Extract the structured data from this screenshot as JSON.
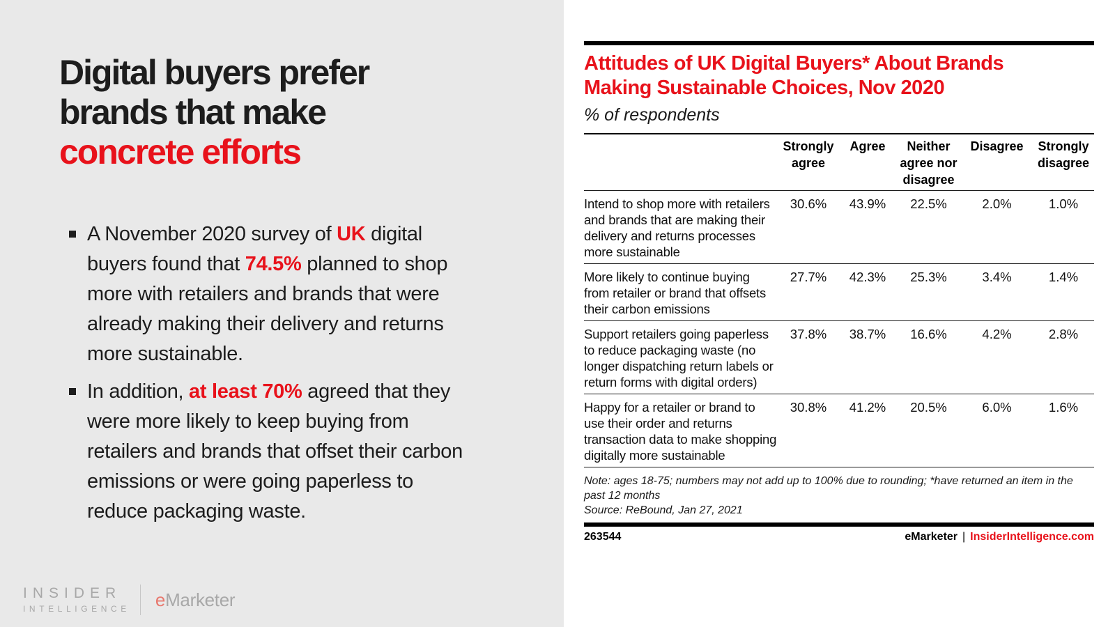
{
  "left_panel": {
    "title": {
      "line1": "Digital buyers prefer",
      "line2": "brands that make",
      "line3": "concrete efforts"
    },
    "bullets": [
      {
        "segments": [
          {
            "text": "A November 2020 survey of "
          },
          {
            "text": "UK",
            "style": "em"
          },
          {
            "text": " digital\nbuyers found that "
          },
          {
            "text": "74.5%",
            "style": "em"
          },
          {
            "text": " planned to shop\nmore with retailers and brands that were\nalready making their delivery and returns\nmore sustainable."
          }
        ]
      },
      {
        "segments": [
          {
            "text": "In addition, "
          },
          {
            "text": "at least 70%",
            "style": "em"
          },
          {
            "text": " agreed that they\nwere more likely to keep buying from\nretailers and brands that offset their carbon\nemissions or were going paperless to\nreduce packaging waste."
          }
        ]
      }
    ],
    "logo": {
      "insider_line1": "INSIDER",
      "insider_line2": "INTELLIGENCE",
      "emarketer_e": "e",
      "emarketer_rest": "Marketer"
    }
  },
  "report": {
    "title_line1": "Attitudes of UK Digital Buyers* About Brands",
    "title_line2": "Making Sustainable Choices, Nov 2020",
    "subtitle": "% of respondents",
    "table": {
      "col_headers": [
        "Strongly agree",
        "Agree",
        "Neither agree nor disagree",
        "Disagree",
        "Strongly disagree"
      ],
      "rows": [
        {
          "label": "Intend to shop more with retailers and brands that are making their delivery and returns processes more sustainable",
          "values": [
            "30.6%",
            "43.9%",
            "22.5%",
            "2.0%",
            "1.0%"
          ]
        },
        {
          "label": "More likely to continue buying from retailer or brand that offsets their carbon emissions",
          "values": [
            "27.7%",
            "42.3%",
            "25.3%",
            "3.4%",
            "1.4%"
          ]
        },
        {
          "label": "Support retailers going paperless to reduce packaging waste (no longer dispatching return labels or return forms with digital orders)",
          "values": [
            "37.8%",
            "38.7%",
            "16.6%",
            "4.2%",
            "2.8%"
          ]
        },
        {
          "label": "Happy for a retailer or brand to use their order and returns transaction data to make shopping digitally more sustainable",
          "values": [
            "30.8%",
            "41.2%",
            "20.5%",
            "6.0%",
            "1.6%"
          ]
        }
      ]
    },
    "note": "Note: ages 18-75; numbers may not add up to 100% due to rounding; *have returned an item in the past 12 months",
    "source": "Source: ReBound, Jan 27, 2021",
    "footer": {
      "chart_id": "263544",
      "brand": "eMarketer",
      "separator": "|",
      "site": "InsiderIntelligence.com"
    }
  },
  "colors": {
    "accent_red": "#e8121b",
    "panel_gray": "#e9e9e9"
  },
  "chart_data": {
    "type": "table",
    "title": "Attitudes of UK Digital Buyers* About Brands Making Sustainable Choices, Nov 2020",
    "subtitle": "% of respondents",
    "columns": [
      "Strongly agree",
      "Agree",
      "Neither agree nor disagree",
      "Disagree",
      "Strongly disagree"
    ],
    "row_labels": [
      "Intend to shop more with retailers and brands that are making their delivery and returns processes more sustainable",
      "More likely to continue buying from retailer or brand that offsets their carbon emissions",
      "Support retailers going paperless to reduce packaging waste (no longer dispatching return labels or return forms with digital orders)",
      "Happy for a retailer or brand to use their order and returns transaction data to make shopping digitally more sustainable"
    ],
    "values_pct": [
      [
        30.6,
        43.9,
        22.5,
        2.0,
        1.0
      ],
      [
        27.7,
        42.3,
        25.3,
        3.4,
        1.4
      ],
      [
        37.8,
        38.7,
        16.6,
        4.2,
        2.8
      ],
      [
        30.8,
        41.2,
        20.5,
        6.0,
        1.6
      ]
    ],
    "note": "Note: ages 18-75; numbers may not add up to 100% due to rounding; *have returned an item in the past 12 months",
    "source": "Source: ReBound, Jan 27, 2021"
  }
}
